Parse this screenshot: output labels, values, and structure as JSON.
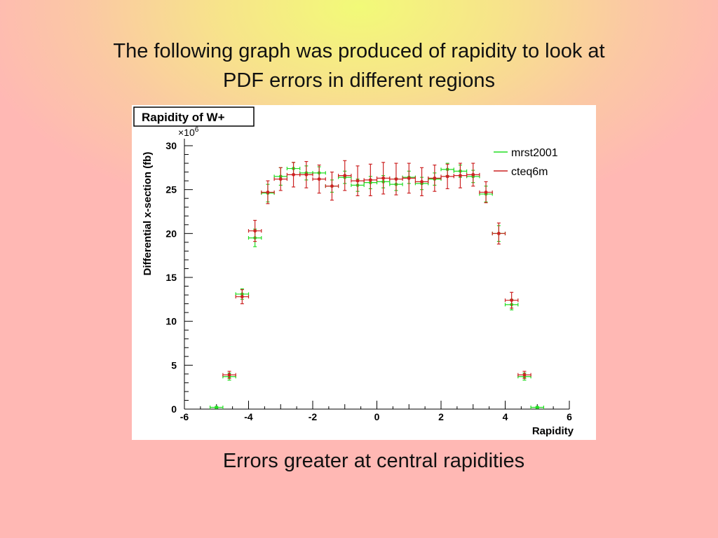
{
  "slide": {
    "title_line1": "The following graph was produced of rapidity to look at",
    "title_line2": "PDF errors in different regions",
    "caption": "Errors greater at central rapidities"
  },
  "chart_data": {
    "type": "scatter",
    "title": "Rapidity of W+",
    "xlabel": "Rapidity",
    "ylabel": "Differential x-section (fb)",
    "y_multiplier": "×10",
    "y_multiplier_exp": "6",
    "xlim": [
      -6,
      6
    ],
    "ylim": [
      0,
      30
    ],
    "xticks": [
      -6,
      -4,
      -2,
      0,
      2,
      4,
      6
    ],
    "yticks": [
      0,
      5,
      10,
      15,
      20,
      25,
      30
    ],
    "grid": false,
    "legend_position": "top-right",
    "x_bin_halfwidth": 0.2,
    "series": [
      {
        "name": "mrst2001",
        "color": "#22dd22",
        "points": [
          {
            "x": -5.0,
            "y": 0.2,
            "err": 0.1
          },
          {
            "x": -4.6,
            "y": 3.7,
            "err": 0.4
          },
          {
            "x": -4.2,
            "y": 13.1,
            "err": 0.6
          },
          {
            "x": -3.8,
            "y": 19.5,
            "err": 1.0
          },
          {
            "x": -3.4,
            "y": 24.6,
            "err": 1.0
          },
          {
            "x": -3.0,
            "y": 26.5,
            "err": 1.0
          },
          {
            "x": -2.6,
            "y": 27.4,
            "err": 0.7
          },
          {
            "x": -2.2,
            "y": 26.9,
            "err": 0.8
          },
          {
            "x": -1.8,
            "y": 26.9,
            "err": 0.7
          },
          {
            "x": -1.4,
            "y": 25.4,
            "err": 0.7
          },
          {
            "x": -1.0,
            "y": 26.4,
            "err": 0.7
          },
          {
            "x": -0.6,
            "y": 25.5,
            "err": 0.7
          },
          {
            "x": -0.2,
            "y": 25.8,
            "err": 0.7
          },
          {
            "x": 0.2,
            "y": 25.9,
            "err": 0.7
          },
          {
            "x": 0.6,
            "y": 25.6,
            "err": 0.7
          },
          {
            "x": 1.0,
            "y": 26.4,
            "err": 0.7
          },
          {
            "x": 1.4,
            "y": 25.7,
            "err": 0.7
          },
          {
            "x": 1.8,
            "y": 26.2,
            "err": 0.7
          },
          {
            "x": 2.2,
            "y": 27.3,
            "err": 0.7
          },
          {
            "x": 2.6,
            "y": 27.1,
            "err": 0.7
          },
          {
            "x": 3.0,
            "y": 26.5,
            "err": 0.7
          },
          {
            "x": 3.4,
            "y": 24.5,
            "err": 0.9
          },
          {
            "x": 3.8,
            "y": 20.0,
            "err": 0.9
          },
          {
            "x": 4.2,
            "y": 11.9,
            "err": 0.6
          },
          {
            "x": 4.6,
            "y": 3.7,
            "err": 0.4
          },
          {
            "x": 5.0,
            "y": 0.2,
            "err": 0.1
          }
        ]
      },
      {
        "name": "cteq6m",
        "color": "#cc2222",
        "points": [
          {
            "x": -4.6,
            "y": 3.9,
            "err": 0.4
          },
          {
            "x": -4.2,
            "y": 12.8,
            "err": 0.8
          },
          {
            "x": -3.8,
            "y": 20.3,
            "err": 1.2
          },
          {
            "x": -3.4,
            "y": 24.7,
            "err": 1.3
          },
          {
            "x": -3.0,
            "y": 26.2,
            "err": 1.3
          },
          {
            "x": -2.6,
            "y": 26.7,
            "err": 1.4
          },
          {
            "x": -2.2,
            "y": 26.7,
            "err": 1.5
          },
          {
            "x": -1.8,
            "y": 26.2,
            "err": 1.6
          },
          {
            "x": -1.4,
            "y": 25.4,
            "err": 1.6
          },
          {
            "x": -1.0,
            "y": 26.6,
            "err": 1.7
          },
          {
            "x": -0.6,
            "y": 26.0,
            "err": 1.7
          },
          {
            "x": -0.2,
            "y": 26.1,
            "err": 1.8
          },
          {
            "x": 0.2,
            "y": 26.3,
            "err": 1.8
          },
          {
            "x": 0.6,
            "y": 26.2,
            "err": 1.8
          },
          {
            "x": 1.0,
            "y": 26.3,
            "err": 1.7
          },
          {
            "x": 1.4,
            "y": 25.9,
            "err": 1.6
          },
          {
            "x": 1.8,
            "y": 26.3,
            "err": 1.5
          },
          {
            "x": 2.2,
            "y": 26.5,
            "err": 1.4
          },
          {
            "x": 2.6,
            "y": 26.6,
            "err": 1.4
          },
          {
            "x": 3.0,
            "y": 26.7,
            "err": 1.3
          },
          {
            "x": 3.4,
            "y": 24.7,
            "err": 1.2
          },
          {
            "x": 3.8,
            "y": 20.0,
            "err": 1.2
          },
          {
            "x": 4.2,
            "y": 12.4,
            "err": 0.9
          },
          {
            "x": 4.6,
            "y": 3.9,
            "err": 0.4
          }
        ]
      }
    ]
  }
}
